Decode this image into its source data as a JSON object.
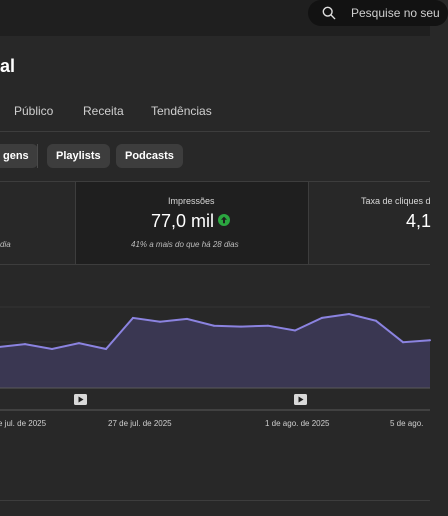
{
  "header": {
    "search_placeholder": "Pesquise no seu"
  },
  "page": {
    "title": "al"
  },
  "tabs": [
    {
      "label": "Público"
    },
    {
      "label": "Receita"
    },
    {
      "label": "Tendências"
    }
  ],
  "chips": [
    {
      "label": "gens"
    },
    {
      "label": "Playlists"
    },
    {
      "label": "Podcasts"
    }
  ],
  "metrics": {
    "left_note": "dia",
    "impressions": {
      "label": "Impressões",
      "value": "77,0 mil",
      "note": "41% a mais do que há 28 dias"
    },
    "ctr": {
      "label": "Taxa de cliques d",
      "value": "4,1"
    }
  },
  "colors": {
    "line": "#8b83e0",
    "fill": "#3a3752",
    "trend_up": "#2ba640"
  },
  "chart_data": {
    "type": "area",
    "x_tick_labels": [
      "e jul. de 2025",
      "27 de jul. de 2025",
      "1 de ago. de 2025",
      "5 de ago."
    ],
    "values": [
      0.66,
      0.69,
      0.64,
      0.7,
      0.64,
      0.96,
      0.92,
      0.95,
      0.88,
      0.87,
      0.88,
      0.83,
      0.96,
      1.0,
      0.93,
      0.71,
      0.73
    ]
  }
}
